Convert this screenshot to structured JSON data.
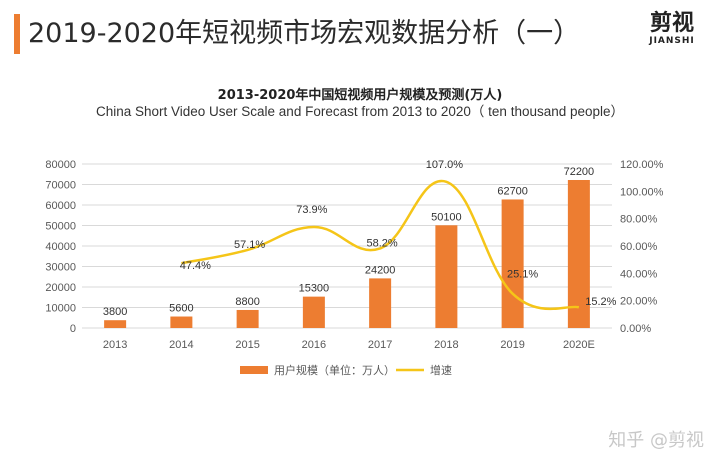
{
  "page_title": "2019-2020年短视频市场宏观数据分析（一）",
  "brand": {
    "cn": "剪视",
    "en": "JIANSHI"
  },
  "watermark": "知乎 @剪视",
  "colors": {
    "accent": "#ED7D31",
    "bar": "#ED7D31",
    "line": "#F5C518",
    "grid": "#d9d9d9",
    "axis_text": "#595959"
  },
  "chart_data": {
    "type": "bar",
    "title": "2013-2020年中国短视频用户规模及预测(万人)",
    "subtitle": "China Short Video User Scale and Forecast from 2013 to 2020（ ten thousand people）",
    "categories": [
      "2013",
      "2014",
      "2015",
      "2016",
      "2017",
      "2018",
      "2019",
      "2020E"
    ],
    "series": [
      {
        "name": "用户规模（单位：万人）",
        "type": "bar",
        "axis": "left",
        "values": [
          3800,
          5600,
          8800,
          15300,
          24200,
          50100,
          62700,
          72200
        ],
        "labels": [
          "3800",
          "5600",
          "8800",
          "15300",
          "24200",
          "50100",
          "62700",
          "72200"
        ]
      },
      {
        "name": "增速",
        "type": "line",
        "smooth": true,
        "axis": "right",
        "values": [
          null,
          47.4,
          57.1,
          73.9,
          58.2,
          107.0,
          25.1,
          15.2
        ],
        "labels": [
          "",
          "47.4%",
          "57.1%",
          "73.9%",
          "58.2%",
          "107.0%",
          "25.1%",
          "15.2%"
        ]
      }
    ],
    "y_left": {
      "min": 0,
      "max": 80000,
      "ticks": [
        "0",
        "10000",
        "20000",
        "30000",
        "40000",
        "50000",
        "60000",
        "70000",
        "80000"
      ]
    },
    "y_right": {
      "min": 0,
      "max": 120,
      "unit": "%",
      "ticks": [
        "0.00%",
        "20.00%",
        "40.00%",
        "60.00%",
        "80.00%",
        "100.00%",
        "120.00%"
      ]
    },
    "grid": true,
    "legend_position": "bottom"
  }
}
